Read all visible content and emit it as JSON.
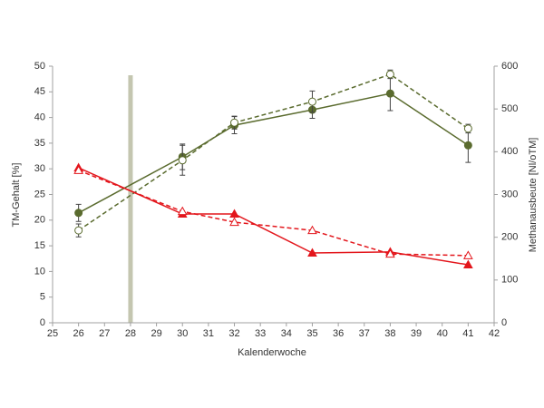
{
  "chart_data": {
    "type": "line",
    "x_label": "Kalenderwoche",
    "y_label": "TM-Gehalt  [%]",
    "y2_label": "Methanausbeute  [Nl/oTM]",
    "x": [
      26,
      30,
      32,
      35,
      38,
      41
    ],
    "xlim": [
      25,
      42
    ],
    "xticks": [
      25,
      26,
      27,
      28,
      29,
      30,
      31,
      32,
      33,
      34,
      35,
      36,
      37,
      38,
      39,
      40,
      41,
      42
    ],
    "ylim": [
      0,
      50
    ],
    "yticks": [
      0,
      5,
      10,
      15,
      20,
      25,
      30,
      35,
      40,
      45,
      50
    ],
    "y2lim": [
      0,
      600
    ],
    "y2ticks": [
      0,
      100,
      200,
      300,
      400,
      500,
      600
    ],
    "grid": false,
    "marker_x": 28,
    "marker_color": "#c4c6b0",
    "series": [
      {
        "color": "#5a6b2e",
        "axis": "y2",
        "dashed": false,
        "marker": "circle",
        "filled": true,
        "values": [
          257,
          388,
          462,
          498,
          536,
          415
        ],
        "errors": [
          20,
          30,
          20,
          20,
          40,
          40
        ]
      },
      {
        "color": "#5a6b2e",
        "axis": "y2",
        "dashed": true,
        "marker": "circle",
        "filled": false,
        "values": [
          216,
          380,
          468,
          517,
          581,
          454
        ],
        "errors": [
          15,
          35,
          15,
          25,
          10,
          10
        ]
      },
      {
        "color": "#e3161c",
        "axis": "y",
        "dashed": false,
        "marker": "triangle",
        "filled": true,
        "values": [
          30.2,
          21.2,
          21.2,
          13.6,
          13.8,
          11.3
        ]
      },
      {
        "color": "#e3161c",
        "axis": "y",
        "dashed": true,
        "marker": "triangle",
        "filled": false,
        "values": [
          29.7,
          21.7,
          19.6,
          18.0,
          13.4,
          13.1
        ]
      }
    ]
  }
}
